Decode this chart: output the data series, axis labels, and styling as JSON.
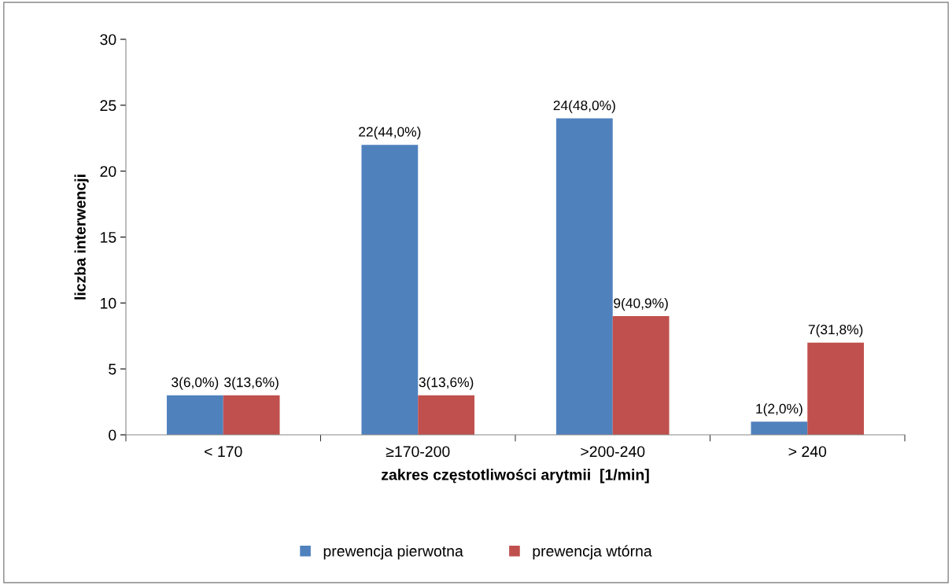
{
  "chart_data": {
    "type": "bar",
    "xlabel": "zakres częstotliwości arytmii  [1/min]",
    "ylabel": "liczba interwencji",
    "categories": [
      "< 170",
      "≥170-200",
      ">200-240",
      "> 240"
    ],
    "series": [
      {
        "name": "prewencja pierwotna",
        "color": "#4f81bd",
        "values": [
          3,
          22,
          24,
          1
        ],
        "value_labels": [
          "3(6,0%)",
          "22(44,0%)",
          "24(48,0%)",
          "1(2,0%)"
        ]
      },
      {
        "name": "prewencja wtórna",
        "color": "#c0504d",
        "values": [
          3,
          3,
          9,
          7
        ],
        "value_labels": [
          "3(13,6%)",
          "3(13,6%)",
          "9(40,9%)",
          "7(31,8%)"
        ]
      }
    ],
    "ylim": [
      0,
      30
    ],
    "yticks": [
      0,
      5,
      10,
      15,
      20,
      25,
      30
    ],
    "grid": false,
    "legend": "bottom"
  }
}
